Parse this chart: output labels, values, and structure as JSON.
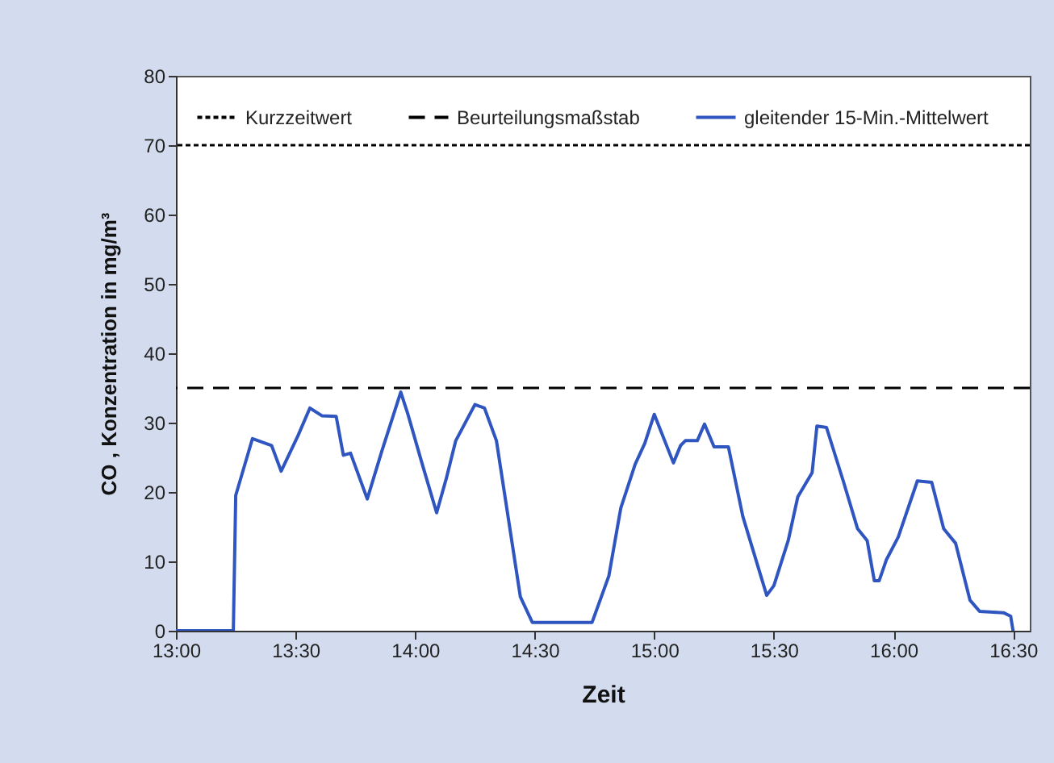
{
  "chart_data": {
    "type": "line",
    "xlabel": "Zeit",
    "ylabel": "CO , Konzentration in mg/m³",
    "x": [
      13.0,
      13.24,
      13.25,
      13.32,
      13.4,
      13.44,
      13.51,
      13.56,
      13.61,
      13.67,
      13.7,
      13.73,
      13.8,
      13.86,
      13.94,
      13.97,
      14.03,
      14.09,
      14.13,
      14.17,
      14.25,
      14.29,
      14.34,
      14.44,
      14.49,
      14.74,
      14.81,
      14.86,
      14.92,
      14.96,
      15.0,
      15.08,
      15.11,
      15.13,
      15.18,
      15.21,
      15.25,
      15.31,
      15.37,
      15.47,
      15.5,
      15.56,
      15.6,
      15.66,
      15.68,
      15.72,
      15.79,
      15.85,
      15.89,
      15.92,
      15.94,
      15.97,
      16.02,
      16.1,
      16.16,
      16.21,
      16.26,
      16.32,
      16.36,
      16.46,
      16.49,
      16.5
    ],
    "series": [
      {
        "name": "gleitender 15-Min.-Mittelwert",
        "color": "#2f55c0",
        "values": [
          0,
          0,
          19.5,
          27.7,
          26.7,
          23,
          28.1,
          32.1,
          31,
          30.9,
          25.3,
          25.6,
          19,
          25.8,
          34.4,
          31.2,
          24,
          17,
          21.9,
          27.4,
          32.6,
          32.1,
          27.4,
          4.9,
          1.2,
          1.2,
          7.9,
          17.7,
          24,
          27,
          31.2,
          24.2,
          26.7,
          27.4,
          27.4,
          29.8,
          26.5,
          26.5,
          16.5,
          5.1,
          6.5,
          13,
          19.3,
          22.8,
          29.5,
          29.3,
          21.6,
          14.7,
          13.0,
          7.2,
          7.2,
          10.2,
          13.5,
          21.6,
          21.4,
          14.7,
          12.6,
          4.4,
          2.8,
          2.6,
          2.1,
          0
        ]
      }
    ],
    "ref_lines": [
      {
        "axis": "y",
        "value": 70,
        "label": "Kurzzeitwert",
        "line_style": "dotted",
        "color": "#000000"
      },
      {
        "axis": "y",
        "value": 35,
        "label": "Beurteilungsmaßstab",
        "line_style": "dashed",
        "color": "#000000"
      }
    ],
    "xlim": [
      13,
      16.57
    ],
    "xticks": [
      {
        "value": 13,
        "label": "13:00"
      },
      {
        "value": 13.5,
        "label": "13:30"
      },
      {
        "value": 14,
        "label": "14:00"
      },
      {
        "value": 14.5,
        "label": "14:30"
      },
      {
        "value": 15,
        "label": "15:00"
      },
      {
        "value": 15.5,
        "label": "15:30"
      },
      {
        "value": 16,
        "label": "16:00"
      },
      {
        "value": 16.5,
        "label": "16:30"
      }
    ],
    "ylim": [
      0,
      80
    ],
    "yticks": [
      0,
      10,
      20,
      30,
      40,
      50,
      60,
      70,
      80
    ],
    "legend": "top",
    "grid": false,
    "line_style": "solid",
    "marker": "none"
  }
}
